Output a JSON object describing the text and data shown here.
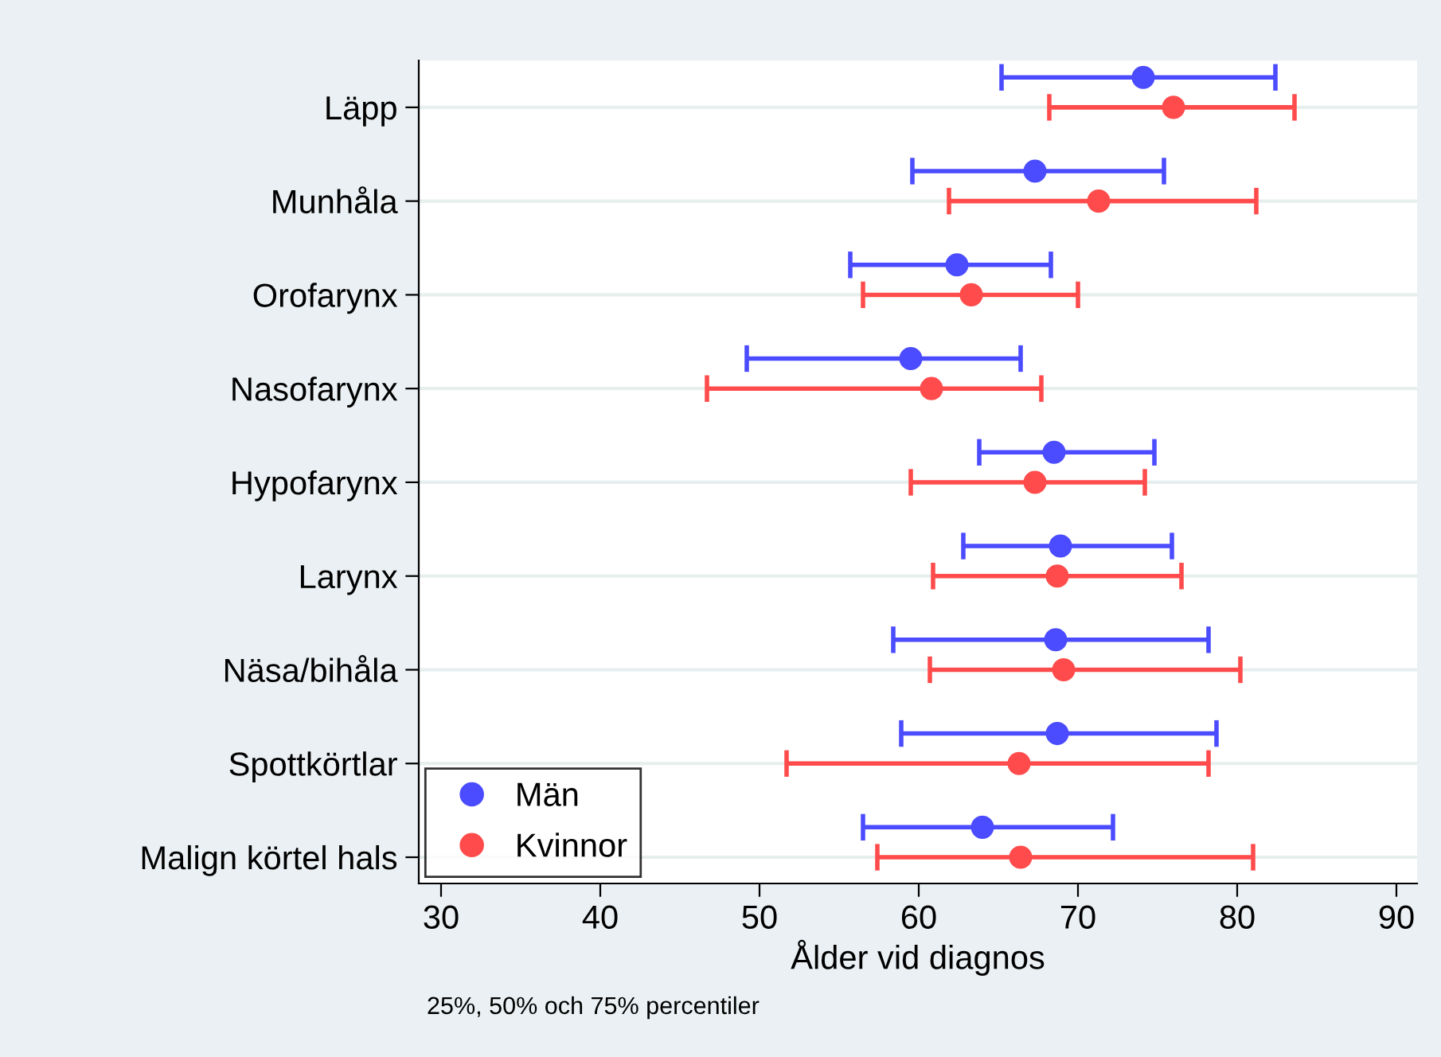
{
  "chart_data": {
    "type": "scatter",
    "orientation": "horizontal",
    "xlabel": "Ålder vid diagnos",
    "categories": [
      "Läpp",
      "Munhåla",
      "Orofarynx",
      "Nasofarynx",
      "Hypofarynx",
      "Larynx",
      "Näsa/bihåla",
      "Spottkörtlar",
      "Malign körtel hals"
    ],
    "series": [
      {
        "name": "Män",
        "color": "#4b4bff",
        "values": [
          74.1,
          67.3,
          62.4,
          59.5,
          68.5,
          68.9,
          68.6,
          68.7,
          64.0
        ],
        "errors": [
          [
            65.2,
            82.4
          ],
          [
            59.6,
            75.4
          ],
          [
            55.7,
            68.3
          ],
          [
            49.2,
            66.4
          ],
          [
            63.8,
            74.8
          ],
          [
            62.8,
            75.9
          ],
          [
            58.4,
            78.2
          ],
          [
            58.9,
            78.7
          ],
          [
            56.5,
            72.2
          ]
        ]
      },
      {
        "name": "Kvinnor",
        "color": "#ff4b4b",
        "values": [
          76.0,
          71.3,
          63.3,
          60.8,
          67.3,
          68.7,
          69.1,
          66.3,
          66.4
        ],
        "errors": [
          [
            68.2,
            83.6
          ],
          [
            61.9,
            81.2
          ],
          [
            56.5,
            70.0
          ],
          [
            46.7,
            67.7
          ],
          [
            59.5,
            74.2
          ],
          [
            60.9,
            76.5
          ],
          [
            60.7,
            80.2
          ],
          [
            51.7,
            78.2
          ],
          [
            57.4,
            81.0
          ]
        ]
      }
    ],
    "xlim": [
      28.6,
      91.3
    ],
    "xticks": [
      30,
      40,
      50,
      60,
      70,
      80,
      90
    ],
    "grid": "y",
    "legend": "bottom left",
    "marker": "circle",
    "annotations": [
      "25%, 50% och 75% percentiler"
    ]
  }
}
